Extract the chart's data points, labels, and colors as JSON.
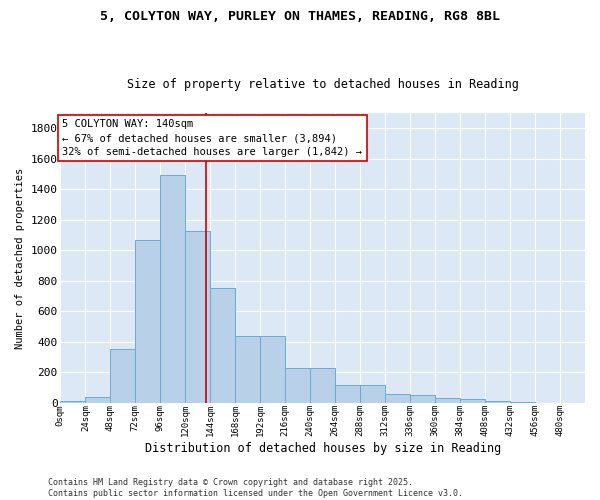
{
  "title_line1": "5, COLYTON WAY, PURLEY ON THAMES, READING, RG8 8BL",
  "title_line2": "Size of property relative to detached houses in Reading",
  "xlabel": "Distribution of detached houses by size in Reading",
  "ylabel": "Number of detached properties",
  "bar_values": [
    10,
    35,
    355,
    1070,
    1495,
    1125,
    755,
    440,
    440,
    225,
    225,
    115,
    115,
    55,
    50,
    30,
    25,
    15,
    5,
    2,
    0
  ],
  "bin_edges": [
    0,
    24,
    48,
    72,
    96,
    120,
    144,
    168,
    192,
    216,
    240,
    264,
    288,
    312,
    336,
    360,
    384,
    408,
    432,
    456,
    480,
    504
  ],
  "tick_labels": [
    "0sqm",
    "24sqm",
    "48sqm",
    "72sqm",
    "96sqm",
    "120sqm",
    "144sqm",
    "168sqm",
    "192sqm",
    "216sqm",
    "240sqm",
    "264sqm",
    "288sqm",
    "312sqm",
    "336sqm",
    "360sqm",
    "384sqm",
    "408sqm",
    "432sqm",
    "456sqm",
    "480sqm"
  ],
  "bar_facecolor": "#b8d0e8",
  "bar_edgecolor": "#6aaad4",
  "vline_x": 140,
  "vline_color": "#cc0000",
  "annotation_text": "5 COLYTON WAY: 140sqm\n← 67% of detached houses are smaller (3,894)\n32% of semi-detached houses are larger (1,842) →",
  "annotation_box_color": "#cc0000",
  "annotation_bg": "#ffffff",
  "ylim": [
    0,
    1900
  ],
  "yticks": [
    0,
    200,
    400,
    600,
    800,
    1000,
    1200,
    1400,
    1600,
    1800
  ],
  "background_color": "#dce8f5",
  "grid_color": "#ffffff",
  "footer_text": "Contains HM Land Registry data © Crown copyright and database right 2025.\nContains public sector information licensed under the Open Government Licence v3.0.",
  "title_fontsize": 9.5,
  "subtitle_fontsize": 8.5,
  "xlabel_fontsize": 8.5,
  "ylabel_fontsize": 7.5,
  "tick_fontsize": 6.5,
  "ytick_fontsize": 8,
  "annotation_fontsize": 7.5,
  "footer_fontsize": 6.0
}
